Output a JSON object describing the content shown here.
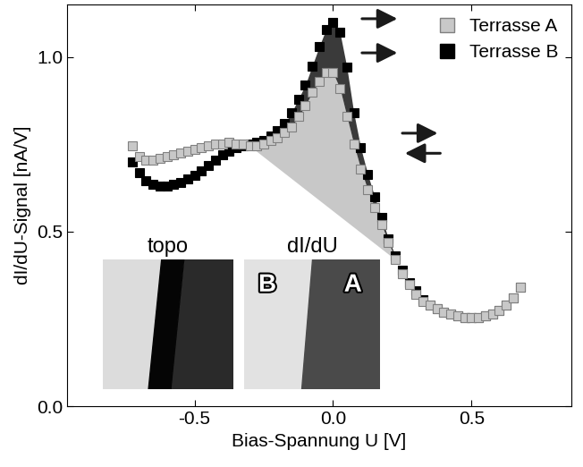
{
  "chart_data": {
    "type": "scatter",
    "x_label": "Bias-Spannung U [V]",
    "y_label": "dI/dU-Signal [nA/V]",
    "x": [
      -0.725,
      -0.7,
      -0.675,
      -0.65,
      -0.625,
      -0.6,
      -0.575,
      -0.55,
      -0.525,
      -0.5,
      -0.475,
      -0.45,
      -0.425,
      -0.4,
      -0.375,
      -0.35,
      -0.325,
      -0.3,
      -0.275,
      -0.25,
      -0.225,
      -0.2,
      -0.175,
      -0.15,
      -0.125,
      -0.1,
      -0.075,
      -0.05,
      -0.025,
      0.0,
      0.025,
      0.05,
      0.075,
      0.1,
      0.125,
      0.15,
      0.175,
      0.2,
      0.225,
      0.25,
      0.275,
      0.3,
      0.325,
      0.35,
      0.375,
      0.4,
      0.425,
      0.45,
      0.475,
      0.5,
      0.525,
      0.55,
      0.575,
      0.6,
      0.625,
      0.65,
      0.675
    ],
    "series": [
      {
        "name": "Terrasse A",
        "color": "#c8c8c8",
        "marker": "square",
        "values": [
          0.745,
          0.715,
          0.705,
          0.705,
          0.71,
          0.715,
          0.72,
          0.725,
          0.73,
          0.735,
          0.74,
          0.745,
          0.75,
          0.75,
          0.755,
          0.75,
          0.75,
          0.745,
          0.745,
          0.75,
          0.76,
          0.77,
          0.785,
          0.8,
          0.83,
          0.86,
          0.9,
          0.93,
          0.955,
          0.955,
          0.91,
          0.83,
          0.75,
          0.68,
          0.62,
          0.57,
          0.52,
          0.47,
          0.42,
          0.38,
          0.35,
          0.32,
          0.3,
          0.29,
          0.28,
          0.27,
          0.265,
          0.26,
          0.255,
          0.255,
          0.255,
          0.26,
          0.265,
          0.275,
          0.29,
          0.31,
          0.34
        ]
      },
      {
        "name": "Terrasse B",
        "color": "#000000",
        "marker": "square",
        "values": [
          0.7,
          0.67,
          0.645,
          0.635,
          0.63,
          0.63,
          0.635,
          0.64,
          0.65,
          0.66,
          0.675,
          0.69,
          0.705,
          0.72,
          0.73,
          0.74,
          0.745,
          0.75,
          0.755,
          0.76,
          0.775,
          0.79,
          0.81,
          0.84,
          0.88,
          0.92,
          0.975,
          1.03,
          1.08,
          1.1,
          1.07,
          0.97,
          0.84,
          0.74,
          0.665,
          0.6,
          0.54,
          0.48,
          0.43,
          0.39,
          0.355,
          0.33,
          0.305,
          0.29,
          0.28,
          0.27,
          0.265,
          0.26,
          0.255,
          0.255,
          0.255,
          0.26,
          0.265,
          0.275,
          0.29,
          0.31,
          0.34
        ]
      }
    ],
    "shaded_range": [
      -0.3,
      0.225
    ],
    "xlim": [
      -0.96,
      0.86
    ],
    "xticks": [
      -0.5,
      {
        "value": 0,
        "label": "0.0"
      },
      0.5
    ],
    "ylim": [
      0,
      1.15
    ],
    "yticks": [
      {
        "value": 0,
        "label": "0.0"
      },
      0.5,
      {
        "value": 1,
        "label": "1.0"
      }
    ],
    "legend": "upper right",
    "insets": [
      {
        "title": "topo"
      },
      {
        "title": "dI/dU",
        "labels": [
          "B",
          "A"
        ]
      }
    ]
  }
}
